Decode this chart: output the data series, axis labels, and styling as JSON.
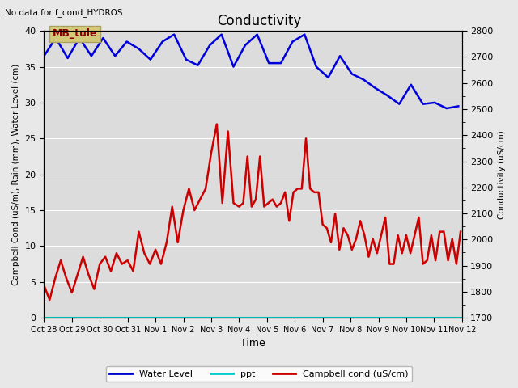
{
  "title": "Conductivity",
  "top_left_text": "No data for f_cond_HYDROS",
  "xlabel": "Time",
  "ylabel_left": "Campbell Cond (uS/m), Rain (mm), Water Level (cm)",
  "ylabel_right": "Conductivity (uS/cm)",
  "ylim_left": [
    0,
    40
  ],
  "ylim_right": [
    1700,
    2800
  ],
  "background_color": "#e8e8e8",
  "plot_bg_color": "#dcdcdc",
  "legend_entries": [
    "Water Level",
    "ppt",
    "Campbell cond (uS/cm)"
  ],
  "legend_colors": [
    "#0000cc",
    "#00cccc",
    "#cc0000"
  ],
  "site_label": "MB_tule",
  "site_label_bg": "#d4c97a",
  "site_label_color": "#880000",
  "water_level_color": "#0000dd",
  "ppt_color": "#00cccc",
  "campbell_color": "#cc0000",
  "water_level_linewidth": 1.8,
  "campbell_linewidth": 1.8,
  "ppt_linewidth": 1.5,
  "water_level_data_x": [
    0,
    0.42,
    0.85,
    1.27,
    1.7,
    2.12,
    2.55,
    2.97,
    3.4,
    3.82,
    4.25,
    4.67,
    5.1,
    5.52,
    5.95,
    6.37,
    6.8,
    7.22,
    7.65,
    8.07,
    8.5,
    8.92,
    9.35,
    9.77,
    10.2,
    10.62,
    11.05,
    11.47,
    11.9,
    12.32,
    12.75,
    13.17,
    13.6,
    14.02,
    14.45,
    14.87
  ],
  "water_level_data_y": [
    36.5,
    39.0,
    36.2,
    39.0,
    36.5,
    39.0,
    36.5,
    38.5,
    37.5,
    36.0,
    38.5,
    39.5,
    36.0,
    35.2,
    38.0,
    39.5,
    35.0,
    38.0,
    39.5,
    35.5,
    35.5,
    38.5,
    39.5,
    35.0,
    33.5,
    36.5,
    34.0,
    33.2,
    32.0,
    31.0,
    29.8,
    32.5,
    29.8,
    30.0,
    29.2,
    29.5
  ],
  "campbell_data_x": [
    0,
    0.2,
    0.4,
    0.6,
    0.8,
    1.0,
    1.2,
    1.4,
    1.6,
    1.8,
    2.0,
    2.2,
    2.4,
    2.6,
    2.8,
    3.0,
    3.2,
    3.4,
    3.6,
    3.8,
    4.0,
    4.2,
    4.4,
    4.6,
    4.8,
    5.0,
    5.2,
    5.4,
    5.6,
    5.8,
    6.0,
    6.2,
    6.4,
    6.6,
    6.8,
    7.0,
    7.15,
    7.3,
    7.45,
    7.6,
    7.75,
    7.9,
    8.05,
    8.2,
    8.35,
    8.5,
    8.65,
    8.8,
    8.95,
    9.1,
    9.25,
    9.4,
    9.55,
    9.7,
    9.85,
    10.0,
    10.15,
    10.3,
    10.45,
    10.6,
    10.75,
    10.9,
    11.05,
    11.2,
    11.35,
    11.5,
    11.65,
    11.8,
    11.95,
    12.1,
    12.25,
    12.4,
    12.55,
    12.7,
    12.85,
    13.0,
    13.15,
    13.3,
    13.45,
    13.6,
    13.75,
    13.9,
    14.05,
    14.2,
    14.35,
    14.5,
    14.65,
    14.8,
    14.95
  ],
  "campbell_data_y": [
    4.5,
    2.5,
    5.5,
    8.0,
    5.5,
    3.5,
    6.0,
    8.5,
    6.0,
    4.0,
    7.5,
    8.5,
    6.5,
    9.0,
    7.5,
    8.0,
    6.5,
    12.0,
    9.0,
    7.5,
    9.5,
    7.5,
    10.5,
    15.5,
    10.5,
    15.0,
    18.0,
    15.0,
    16.5,
    18.0,
    23.0,
    27.0,
    16.0,
    26.0,
    16.0,
    15.5,
    16.0,
    22.5,
    15.5,
    16.5,
    22.5,
    15.5,
    16.0,
    16.5,
    15.5,
    16.0,
    17.5,
    13.5,
    17.5,
    18.0,
    18.0,
    25.0,
    18.0,
    17.5,
    17.5,
    13.0,
    12.5,
    10.5,
    14.5,
    9.5,
    12.5,
    11.5,
    9.5,
    11.0,
    13.5,
    11.5,
    8.5,
    11.0,
    9.0,
    11.5,
    14.0,
    7.5,
    7.5,
    11.5,
    9.0,
    11.5,
    9.0,
    11.5,
    14.0,
    7.5,
    8.0,
    11.5,
    8.0,
    12.0,
    12.0,
    8.0,
    11.0,
    7.5,
    12.0
  ],
  "ppt_data_x": [
    0,
    15
  ],
  "ppt_data_y": [
    0,
    0
  ],
  "xtick_labels": [
    "Oct 28",
    "Oct 29",
    "Oct 30",
    "Oct 31",
    "Nov 1",
    "Nov 2",
    "Nov 3",
    "Nov 4",
    "Nov 5",
    "Nov 6",
    "Nov 7",
    "Nov 8",
    "Nov 9",
    "Nov 10",
    "Nov 11",
    "Nov 12"
  ],
  "xtick_positions": [
    0,
    1,
    2,
    3,
    4,
    5,
    6,
    7,
    8,
    9,
    10,
    11,
    12,
    13,
    14,
    15
  ],
  "yticks_left": [
    0,
    5,
    10,
    15,
    20,
    25,
    30,
    35,
    40
  ],
  "yticks_right": [
    1700,
    1800,
    1900,
    2000,
    2100,
    2200,
    2300,
    2400,
    2500,
    2600,
    2700,
    2800
  ]
}
